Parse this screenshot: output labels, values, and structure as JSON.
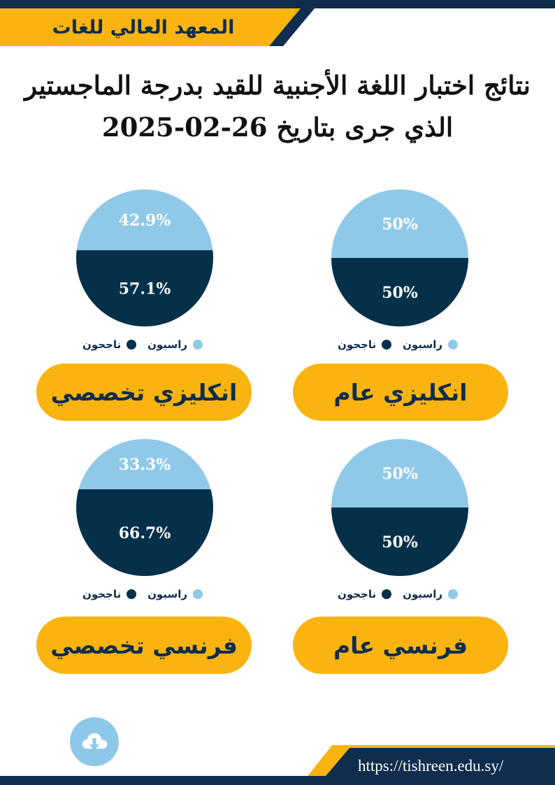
{
  "header": {
    "institute_name": "المعهد العالي للغات"
  },
  "title": {
    "line1": "نتائج اختبار اللغة الأجنبية للقيد بدرجة الماجستير",
    "line2": "الذي جرى بتاريخ 26-02-2025"
  },
  "legend": {
    "failed": "راسبون",
    "passed": "ناجحون"
  },
  "colors": {
    "navy": "#0f2d4d",
    "pie_dark": "#04304a",
    "pie_light": "#90c9e8",
    "accent": "#fbb40f"
  },
  "chart_data": [
    {
      "type": "pie",
      "title": "انكليزي عام",
      "series": [
        {
          "name": "راسبون",
          "value": 50,
          "label": "50%"
        },
        {
          "name": "ناجحون",
          "value": 50,
          "label": "50%"
        }
      ]
    },
    {
      "type": "pie",
      "title": "انكليزي تخصصي",
      "series": [
        {
          "name": "راسبون",
          "value": 42.9,
          "label": "42.9%"
        },
        {
          "name": "ناجحون",
          "value": 57.1,
          "label": "57.1%"
        }
      ]
    },
    {
      "type": "pie",
      "title": "فرنسي عام",
      "series": [
        {
          "name": "راسبون",
          "value": 50,
          "label": "50%"
        },
        {
          "name": "ناجحون",
          "value": 50,
          "label": "50%"
        }
      ]
    },
    {
      "type": "pie",
      "title": "فرنسي تخصصي",
      "series": [
        {
          "name": "راسبون",
          "value": 33.3,
          "label": "33.3%"
        },
        {
          "name": "ناجحون",
          "value": 66.7,
          "label": "66.7%"
        }
      ]
    }
  ],
  "footer": {
    "url": "https://tishreen.edu.sy/",
    "download_icon": "cloud-download-icon"
  }
}
